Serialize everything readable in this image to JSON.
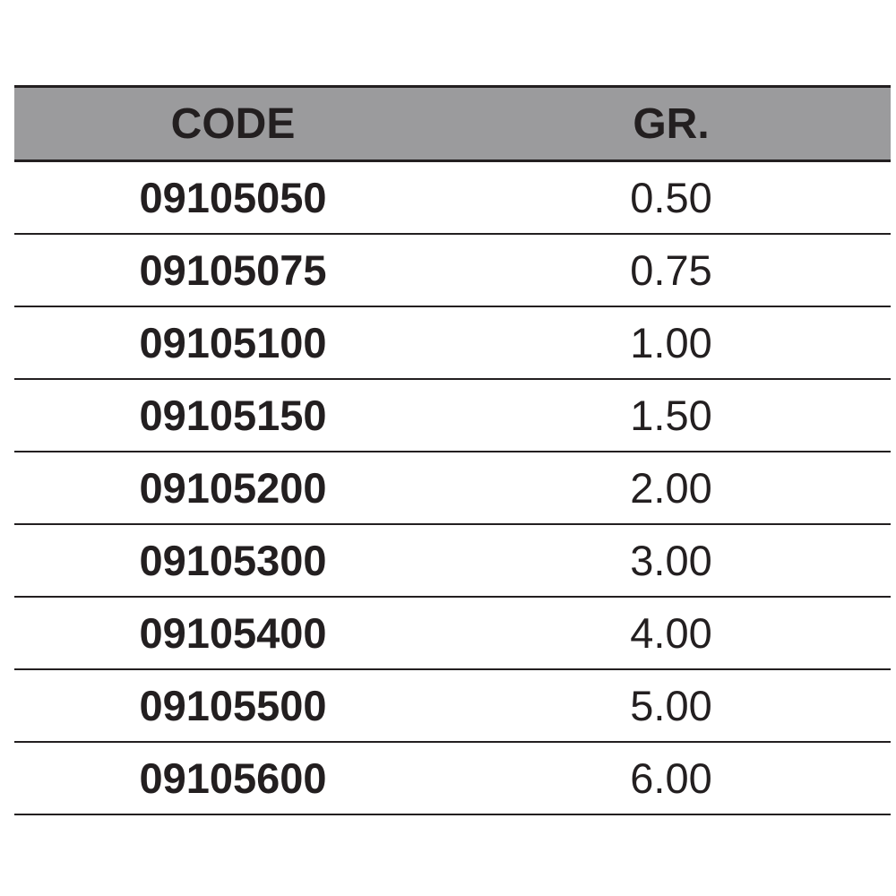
{
  "table": {
    "headers": [
      "CODE",
      "GR."
    ],
    "rows": [
      {
        "code": "09105050",
        "gr": "0.50"
      },
      {
        "code": "09105075",
        "gr": "0.75"
      },
      {
        "code": "09105100",
        "gr": "1.00"
      },
      {
        "code": "09105150",
        "gr": "1.50"
      },
      {
        "code": "09105200",
        "gr": "2.00"
      },
      {
        "code": "09105300",
        "gr": "3.00"
      },
      {
        "code": "09105400",
        "gr": "4.00"
      },
      {
        "code": "09105500",
        "gr": "5.00"
      },
      {
        "code": "09105600",
        "gr": "6.00"
      }
    ],
    "header_color": "#9b9b9d"
  }
}
